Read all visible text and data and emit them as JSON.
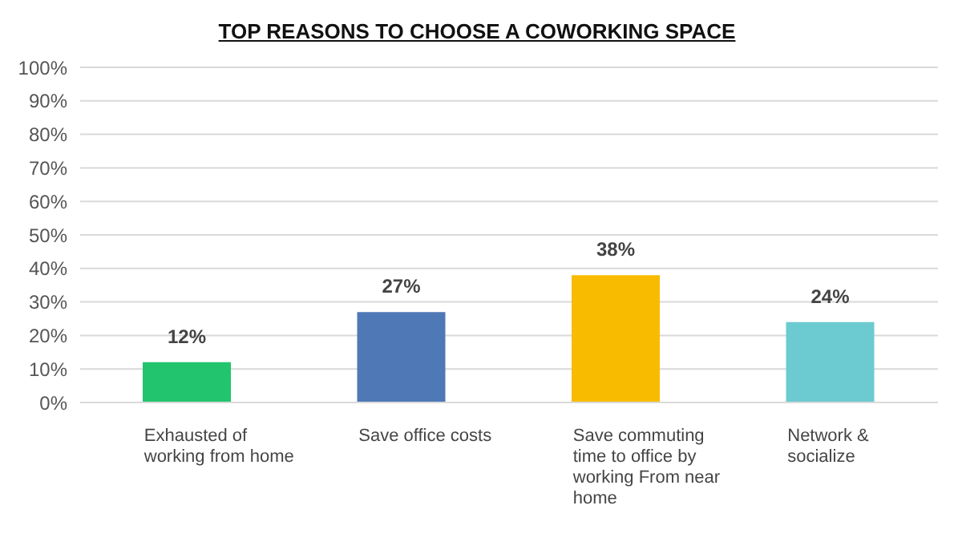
{
  "chart_data": {
    "type": "bar",
    "title": "TOP REASONS TO CHOOSE A COWORKING SPACE",
    "categories": [
      "Exhausted of working from home",
      "Save office costs",
      "Save commuting time to office by working From near home",
      "Network & socialize"
    ],
    "values": [
      12,
      27,
      38,
      24
    ],
    "colors": [
      "#22c46e",
      "#4f78b6",
      "#f8bb00",
      "#6ccbd0"
    ],
    "value_labels": [
      "12%",
      "27%",
      "38%",
      "24%"
    ],
    "ylim": [
      0,
      100
    ],
    "yticks": [
      {
        "value": 0,
        "label": "0%"
      },
      {
        "value": 10,
        "label": "10%"
      },
      {
        "value": 20,
        "label": "20%"
      },
      {
        "value": 30,
        "label": "30%"
      },
      {
        "value": 40,
        "label": "40%"
      },
      {
        "value": 50,
        "label": "50%"
      },
      {
        "value": 60,
        "label": "60%"
      },
      {
        "value": 70,
        "label": "70%"
      },
      {
        "value": 80,
        "label": "80%"
      },
      {
        "value": 90,
        "label": "90%"
      },
      {
        "value": 100,
        "label": "100%"
      }
    ],
    "grid": "y"
  }
}
